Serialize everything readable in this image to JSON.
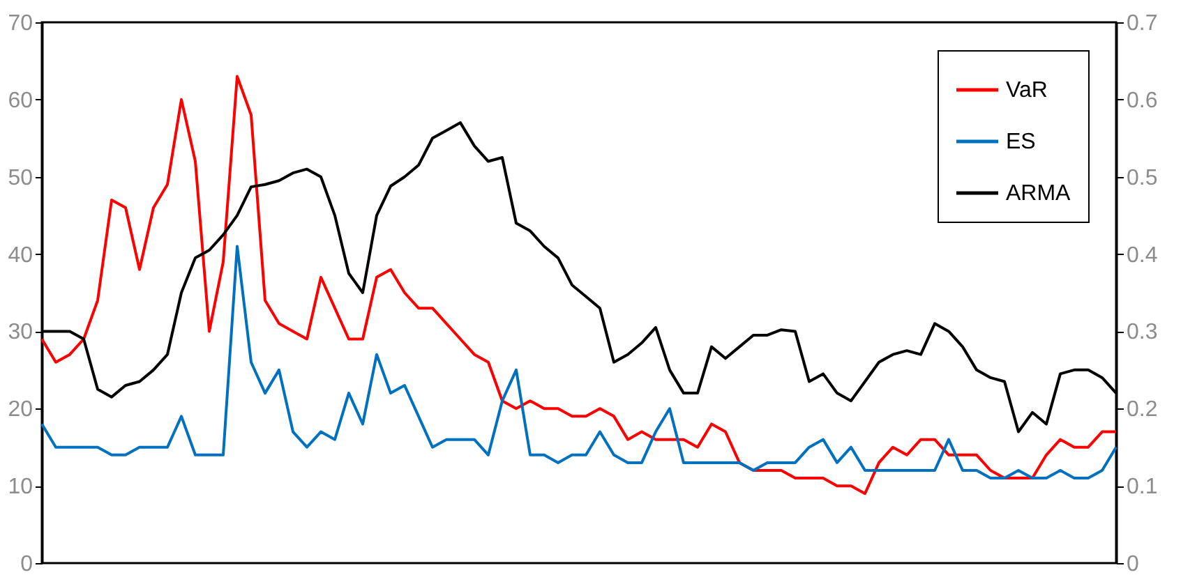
{
  "chart_data": {
    "type": "line",
    "categories": [
      null,
      null,
      null,
      null,
      null,
      null,
      null,
      null,
      null,
      null,
      null,
      null,
      null,
      null,
      null,
      null,
      null,
      null,
      null,
      null,
      null,
      null,
      null,
      null,
      null,
      null,
      null,
      null,
      null,
      null,
      null,
      null,
      null,
      null,
      null,
      null,
      null,
      null,
      null,
      null,
      null,
      null,
      null,
      null,
      null,
      null,
      null,
      null,
      null,
      null,
      null,
      null,
      null,
      null,
      null,
      null,
      null,
      null,
      null,
      null,
      null,
      null,
      null,
      null,
      null,
      null,
      null,
      null,
      null,
      null,
      null,
      null,
      null,
      null,
      null,
      null,
      null,
      null
    ],
    "series": [
      {
        "name": "VaR",
        "color": "#ff0000",
        "values": [
          29,
          26,
          27,
          29,
          34,
          47,
          46,
          38,
          46,
          49,
          60,
          52,
          30,
          39,
          63,
          58,
          34,
          31,
          30,
          29,
          37,
          33,
          29,
          29,
          37,
          38,
          35,
          33,
          33,
          31,
          29,
          27,
          26,
          21,
          20,
          21,
          20,
          20,
          19,
          19,
          20,
          19,
          16,
          17,
          16,
          16,
          16,
          15,
          18,
          17,
          13,
          12,
          12,
          12,
          11,
          11,
          11,
          10,
          10,
          9,
          13,
          15,
          14,
          16,
          16,
          14,
          14,
          14,
          12,
          11,
          11,
          11,
          14,
          16,
          15,
          15,
          17,
          17
        ]
      },
      {
        "name": "ES",
        "color": "#0070c0",
        "values": [
          18,
          15,
          15,
          15,
          15,
          14,
          14,
          15,
          15,
          15,
          19,
          14,
          14,
          14,
          41,
          26,
          22,
          25,
          17,
          15,
          17,
          16,
          22,
          18,
          27,
          22,
          23,
          19,
          15,
          16,
          16,
          16,
          14,
          21,
          25,
          14,
          14,
          13,
          14,
          14,
          17,
          14,
          13,
          13,
          17,
          20,
          13,
          13,
          13,
          13,
          13,
          12,
          13,
          13,
          13,
          15,
          16,
          13,
          15,
          12,
          12,
          12,
          12,
          12,
          12,
          16,
          12,
          12,
          11,
          11,
          12,
          11,
          11,
          12,
          11,
          11,
          12,
          15
        ]
      },
      {
        "name": "ARMA",
        "color": "#000000",
        "axis": "y2",
        "values": [
          0.3,
          0.3,
          0.3,
          0.29,
          0.225,
          0.215,
          0.23,
          0.235,
          0.25,
          0.27,
          0.35,
          0.395,
          0.405,
          0.425,
          0.45,
          0.487,
          0.49,
          0.495,
          0.505,
          0.51,
          0.5,
          0.45,
          0.375,
          0.35,
          0.45,
          0.488,
          0.5,
          0.515,
          0.55,
          0.56,
          0.57,
          0.54,
          0.52,
          0.525,
          0.44,
          0.43,
          0.41,
          0.395,
          0.36,
          0.345,
          0.33,
          0.26,
          0.27,
          0.285,
          0.305,
          0.25,
          0.22,
          0.22,
          0.28,
          0.265,
          0.28,
          0.295,
          0.295,
          0.302,
          0.3,
          0.235,
          0.245,
          0.22,
          0.21,
          0.235,
          0.26,
          0.27,
          0.275,
          0.27,
          0.31,
          0.3,
          0.28,
          0.25,
          0.24,
          0.235,
          0.17,
          0.195,
          0.18,
          0.245,
          0.25,
          0.25,
          0.24,
          0.22
        ]
      }
    ],
    "ylim": [
      0,
      70
    ],
    "yticks": [
      0,
      10,
      20,
      30,
      40,
      50,
      60,
      70
    ],
    "y2lim": [
      0,
      0.7
    ],
    "y2ticks": [
      0,
      0.1,
      0.2,
      0.3,
      0.4,
      0.5,
      0.6,
      0.7
    ],
    "tick_labels": "y",
    "grid": false,
    "legend": "top right",
    "marker": "none",
    "line_style": "solid"
  }
}
